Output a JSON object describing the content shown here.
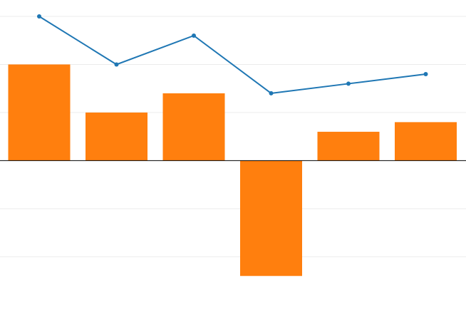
{
  "chart_data": {
    "type": "bar",
    "categories": [
      "",
      "",
      "",
      "",
      "",
      ""
    ],
    "series": [
      {
        "type": "bar",
        "values": [
          2.0,
          1.0,
          1.4,
          -2.4,
          0.6,
          0.8
        ],
        "color": "#ff7f0e"
      },
      {
        "type": "line",
        "values": [
          3.0,
          2.0,
          2.6,
          1.4,
          1.6,
          1.8
        ],
        "color": "#1f77b4"
      }
    ],
    "title": "",
    "xlabel": "",
    "ylabel": "",
    "ylim": [
      -2.5,
      3.0
    ],
    "grid": true,
    "legend": "none"
  }
}
